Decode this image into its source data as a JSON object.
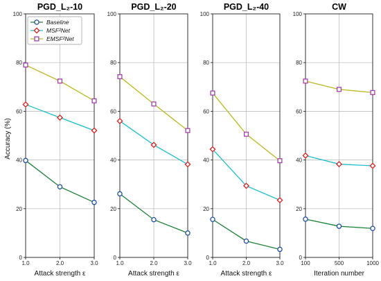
{
  "figure": {
    "ylabel": "Accuracy (%)",
    "legend": {
      "placement": "top-left of first panel",
      "entries": [
        {
          "label": "Baseline",
          "series_key": "baseline"
        },
        {
          "label": "MSF²Net",
          "series_key": "msf2net"
        },
        {
          "label": "EMSF²Net",
          "series_key": "emsf2net"
        }
      ]
    },
    "series_styles": {
      "baseline": {
        "line_color": "#1b7d35",
        "marker": "circle",
        "marker_color": "#1f4e9c"
      },
      "msf2net": {
        "line_color": "#1fbccc",
        "marker": "diamond",
        "marker_color": "#d42020"
      },
      "emsf2net": {
        "line_color": "#b9b824",
        "marker": "square",
        "marker_color": "#a23fa8"
      }
    }
  },
  "chart_data": [
    {
      "type": "line",
      "title": "PGD_L₂-10",
      "xlabel": "Attack strength ε",
      "x": [
        1.0,
        2.0,
        3.0
      ],
      "x_tick_labels": [
        "1.0",
        "2.0",
        "3.0"
      ],
      "ylim": [
        0,
        100
      ],
      "y_ticks": [
        "0",
        "20",
        "40",
        "60",
        "80",
        "100"
      ],
      "grid": true,
      "series": [
        {
          "name": "Baseline",
          "key": "baseline",
          "values": [
            39.8,
            29.0,
            22.6
          ]
        },
        {
          "name": "MSF²Net",
          "key": "msf2net",
          "values": [
            62.8,
            57.4,
            52.1
          ]
        },
        {
          "name": "EMSF²Net",
          "key": "emsf2net",
          "values": [
            79.0,
            72.4,
            64.3
          ]
        }
      ]
    },
    {
      "type": "line",
      "title": "PGD_L₂-20",
      "xlabel": "Attack strength ε",
      "x": [
        1.0,
        2.0,
        3.0
      ],
      "x_tick_labels": [
        "1.0",
        "2.0",
        "3.0"
      ],
      "ylim": [
        0,
        100
      ],
      "y_ticks": [
        "0",
        "20",
        "40",
        "60",
        "80",
        "100"
      ],
      "grid": true,
      "series": [
        {
          "name": "Baseline",
          "key": "baseline",
          "values": [
            26.1,
            15.5,
            10.0
          ]
        },
        {
          "name": "MSF²Net",
          "key": "msf2net",
          "values": [
            56.0,
            46.2,
            38.2
          ]
        },
        {
          "name": "EMSF²Net",
          "key": "emsf2net",
          "values": [
            74.2,
            63.0,
            52.1
          ]
        }
      ]
    },
    {
      "type": "line",
      "title": "PGD_L₂-40",
      "xlabel": "Attack strength ε",
      "x": [
        1.0,
        2.0,
        3.0
      ],
      "x_tick_labels": [
        "1.0",
        "2.0",
        "3.0"
      ],
      "ylim": [
        0,
        100
      ],
      "y_ticks": [
        "0",
        "20",
        "40",
        "60",
        "80",
        "100"
      ],
      "grid": true,
      "series": [
        {
          "name": "Baseline",
          "key": "baseline",
          "values": [
            15.6,
            6.7,
            3.3
          ]
        },
        {
          "name": "MSF²Net",
          "key": "msf2net",
          "values": [
            44.4,
            29.4,
            23.5
          ]
        },
        {
          "name": "EMSF²Net",
          "key": "emsf2net",
          "values": [
            67.5,
            50.6,
            39.7
          ]
        }
      ]
    },
    {
      "type": "line",
      "title": "CW",
      "xlabel": "Iteration number",
      "x": [
        100,
        500,
        1000
      ],
      "x_tick_labels": [
        "100",
        "500",
        "1000"
      ],
      "ylim": [
        0,
        100
      ],
      "y_ticks": [
        "0",
        "20",
        "40",
        "60",
        "80",
        "100"
      ],
      "grid": true,
      "series": [
        {
          "name": "Baseline",
          "key": "baseline",
          "values": [
            15.7,
            12.8,
            11.9
          ]
        },
        {
          "name": "MSF²Net",
          "key": "msf2net",
          "values": [
            41.8,
            38.3,
            37.6
          ]
        },
        {
          "name": "EMSF²Net",
          "key": "emsf2net",
          "values": [
            72.4,
            69.0,
            67.7
          ]
        }
      ]
    }
  ]
}
